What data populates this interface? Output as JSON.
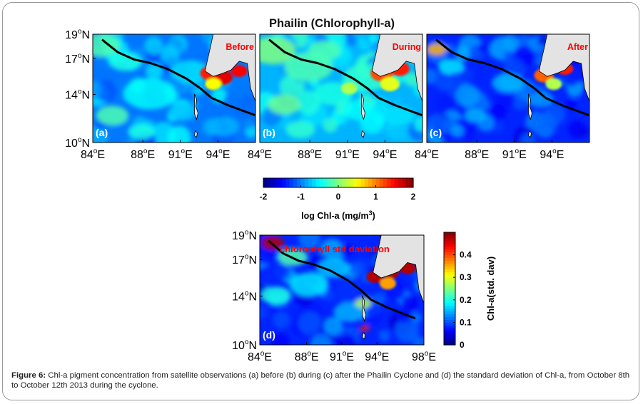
{
  "figure": {
    "title": "Phailin (Chlorophyll-a)",
    "caption_label": "Figure 6:",
    "caption_text": " Chl-a pigment concentration from satellite observations (a) before (b) during (c) after the Phailin Cyclone and (d) the standard deviation of Chl-a, from October 8th to October 12th 2013 during the cyclone."
  },
  "chart_data": [
    {
      "type": "heatmap",
      "panel": "(a)",
      "label": "Before",
      "xticks": [
        "84",
        "88",
        "91",
        "94"
      ],
      "yticks": [
        "10",
        "14",
        "17",
        "19"
      ],
      "xlim": [
        84,
        97
      ],
      "ylim": [
        10,
        19
      ],
      "colorbar": "log-chl",
      "track": [
        [
          84.8,
          18.5
        ],
        [
          86.0,
          17.5
        ],
        [
          87.3,
          16.9
        ],
        [
          88.6,
          16.6
        ],
        [
          90.0,
          16.1
        ],
        [
          91.5,
          15.3
        ],
        [
          92.6,
          14.5
        ],
        [
          93.5,
          13.7
        ],
        [
          94.8,
          13.1
        ],
        [
          96.1,
          12.6
        ],
        [
          96.9,
          12.3
        ]
      ]
    },
    {
      "type": "heatmap",
      "panel": "(b)",
      "label": "During",
      "xticks": [
        "84",
        "88",
        "91",
        "94"
      ],
      "yticks": [],
      "xlim": [
        84,
        97
      ],
      "ylim": [
        10,
        19
      ],
      "colorbar": "log-chl",
      "track": [
        [
          84.8,
          18.5
        ],
        [
          86.0,
          17.5
        ],
        [
          87.3,
          16.9
        ],
        [
          88.6,
          16.6
        ],
        [
          90.0,
          16.1
        ],
        [
          91.5,
          15.3
        ],
        [
          92.6,
          14.5
        ],
        [
          93.5,
          13.7
        ],
        [
          94.8,
          13.1
        ],
        [
          96.1,
          12.6
        ],
        [
          96.9,
          12.3
        ]
      ]
    },
    {
      "type": "heatmap",
      "panel": "(c)",
      "label": "After",
      "xticks": [
        "84",
        "88",
        "91",
        "94"
      ],
      "yticks": [],
      "xlim": [
        84,
        97
      ],
      "ylim": [
        10,
        19
      ],
      "colorbar": "log-chl",
      "track": [
        [
          84.8,
          18.5
        ],
        [
          86.0,
          17.5
        ],
        [
          87.3,
          16.9
        ],
        [
          88.6,
          16.6
        ],
        [
          90.0,
          16.1
        ],
        [
          91.5,
          15.3
        ],
        [
          92.6,
          14.5
        ],
        [
          93.5,
          13.7
        ],
        [
          94.8,
          13.1
        ],
        [
          96.1,
          12.6
        ],
        [
          96.9,
          12.3
        ]
      ]
    },
    {
      "type": "heatmap",
      "panel": "(d)",
      "label": "chlorophyll std daviation",
      "xticks": [
        "84",
        "88",
        "91",
        "94",
        "98"
      ],
      "yticks": [
        "10",
        "14",
        "17",
        "19"
      ],
      "xlim": [
        84,
        98
      ],
      "ylim": [
        10,
        19
      ],
      "colorbar": "std",
      "track": [
        [
          84.8,
          18.5
        ],
        [
          86.0,
          17.5
        ],
        [
          87.3,
          16.9
        ],
        [
          88.6,
          16.6
        ],
        [
          90.0,
          16.1
        ],
        [
          91.5,
          15.3
        ],
        [
          92.6,
          14.5
        ],
        [
          93.5,
          13.7
        ],
        [
          94.8,
          13.1
        ],
        [
          96.1,
          12.6
        ],
        [
          97.2,
          12.2
        ]
      ]
    }
  ],
  "colorbars": {
    "log_chl": {
      "ticks": [
        "-2",
        "-1",
        "0",
        "1",
        "2"
      ],
      "label": "log Chl-a (mg/m",
      "label_sup": "3",
      "label_end": ")",
      "range": [
        -2,
        2
      ]
    },
    "std": {
      "ticks": [
        "0",
        "0.1",
        "0.2",
        "0.3",
        "0.4"
      ],
      "label": "Chl-a(std. dav)",
      "range": [
        0,
        0.5
      ]
    }
  },
  "colors": {
    "low": "#00008f",
    "mid": "#3fffbf",
    "high": "#800000",
    "land": "#e3e3e3",
    "label_red": "#ff0000"
  }
}
